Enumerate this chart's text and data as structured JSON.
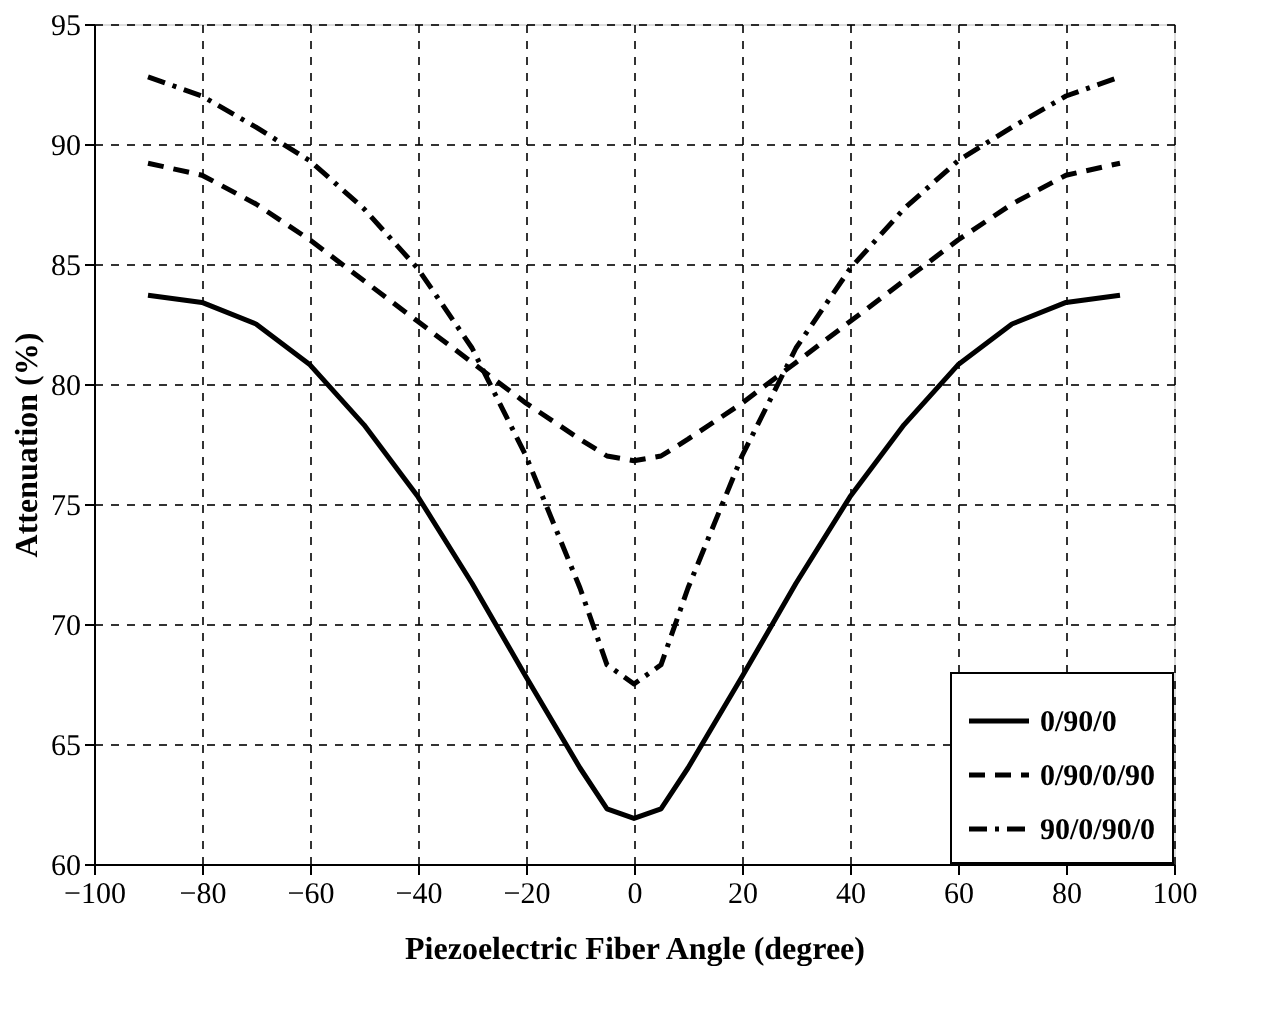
{
  "chart_data": {
    "type": "line",
    "xlabel": "Piezoelectric Fiber Angle (degree)",
    "ylabel": "Attenuation (%)",
    "x": [
      -90,
      -80,
      -70,
      -60,
      -50,
      -40,
      -30,
      -20,
      -10,
      -5,
      0,
      5,
      10,
      20,
      30,
      40,
      50,
      60,
      70,
      80,
      90
    ],
    "series": [
      {
        "name": "0/90/0",
        "color": "#000000",
        "line_style": "solid",
        "values": [
          83.7,
          83.4,
          82.5,
          80.8,
          78.3,
          75.3,
          71.7,
          67.8,
          64.0,
          62.3,
          61.9,
          62.3,
          64.0,
          67.8,
          71.7,
          75.3,
          78.3,
          80.8,
          82.5,
          83.4,
          83.7
        ]
      },
      {
        "name": "0/90/0/90",
        "color": "#000000",
        "line_style": "dashed",
        "values": [
          89.2,
          88.7,
          87.5,
          86.0,
          84.3,
          82.6,
          80.9,
          79.2,
          77.7,
          77.0,
          76.8,
          77.0,
          77.7,
          79.2,
          80.9,
          82.6,
          84.3,
          86.0,
          87.5,
          88.7,
          89.2
        ]
      },
      {
        "name": "90/0/90/0",
        "color": "#000000",
        "line_style": "dashdot",
        "values": [
          92.8,
          92.0,
          90.7,
          89.3,
          87.3,
          84.8,
          81.5,
          77.0,
          71.5,
          68.3,
          67.5,
          68.3,
          71.5,
          77.0,
          81.5,
          84.8,
          87.3,
          89.3,
          90.7,
          92.0,
          92.8
        ]
      }
    ],
    "xlim": [
      -100,
      100
    ],
    "xticks": [
      -100,
      -80,
      -60,
      -40,
      -20,
      0,
      20,
      40,
      60,
      80,
      100
    ],
    "ylim": [
      60,
      95
    ],
    "yticks": [
      60,
      65,
      70,
      75,
      80,
      85,
      90,
      95
    ],
    "grid": true,
    "legend": "bottom right",
    "marker": "none"
  }
}
